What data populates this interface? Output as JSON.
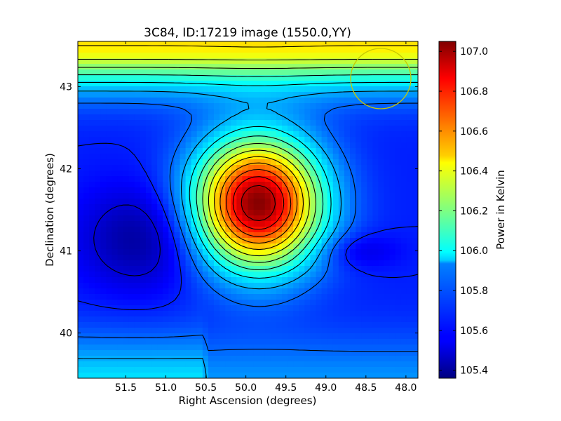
{
  "chart_data": {
    "type": "heatmap",
    "title": "3C84, ID:17219 image (1550.0,YY)",
    "xlabel": "Right Ascension (degrees)",
    "ylabel": "Declination (degrees)",
    "xlim": [
      52.1,
      47.85
    ],
    "ylim": [
      39.45,
      43.55
    ],
    "x_axis_inverted": true,
    "x_ticks": [
      "51.5",
      "51.0",
      "50.5",
      "50.0",
      "49.5",
      "49.0",
      "48.5",
      "48.0"
    ],
    "x_tick_values": [
      51.5,
      51.0,
      50.5,
      50.0,
      49.5,
      49.0,
      48.5,
      48.0
    ],
    "y_ticks": [
      "40",
      "41",
      "42",
      "43"
    ],
    "y_tick_values": [
      40,
      41,
      42,
      43
    ],
    "colorbar": {
      "label": "Power in Kelvin",
      "range": [
        105.36,
        107.05
      ],
      "colormap": "jet",
      "ticks": [
        "105.4",
        "105.6",
        "105.8",
        "106.0",
        "106.2",
        "106.4",
        "106.6",
        "106.8",
        "107.0"
      ],
      "tick_values": [
        105.4,
        105.6,
        105.8,
        106.0,
        106.2,
        106.4,
        106.6,
        106.8,
        107.0
      ]
    },
    "peak": {
      "ra": 49.85,
      "dec": 41.58,
      "value": 107.05
    },
    "contours": "black",
    "beam_circle_color": "#c8c800"
  }
}
